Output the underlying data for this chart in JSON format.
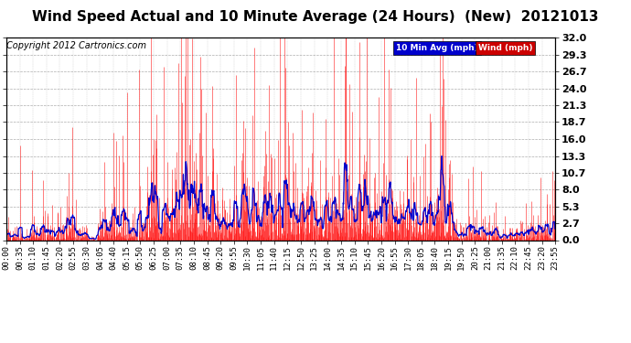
{
  "title": "Wind Speed Actual and 10 Minute Average (24 Hours)  (New)  20121013",
  "copyright": "Copyright 2012 Cartronics.com",
  "yticks": [
    0.0,
    2.7,
    5.3,
    8.0,
    10.7,
    13.3,
    16.0,
    18.7,
    21.3,
    24.0,
    26.7,
    29.3,
    32.0
  ],
  "ymax": 32.0,
  "ymin": 0.0,
  "xtick_labels": [
    "00:00",
    "00:35",
    "01:10",
    "01:45",
    "02:20",
    "02:55",
    "03:30",
    "04:05",
    "04:40",
    "05:15",
    "05:50",
    "06:25",
    "07:00",
    "07:35",
    "08:10",
    "08:45",
    "09:20",
    "09:55",
    "10:30",
    "11:05",
    "11:40",
    "12:15",
    "12:50",
    "13:25",
    "14:00",
    "14:35",
    "15:10",
    "15:45",
    "16:20",
    "16:55",
    "17:30",
    "18:05",
    "18:40",
    "19:15",
    "19:50",
    "20:25",
    "21:00",
    "21:35",
    "22:10",
    "22:45",
    "23:20",
    "23:55"
  ],
  "legend_labels": [
    "10 Min Avg (mph)",
    "Wind (mph)"
  ],
  "wind_color": "#ff0000",
  "avg_color": "#0000cc",
  "grey_spike_color": "#555555",
  "bg_color": "#ffffff",
  "plot_bg_color": "#ffffff",
  "grid_color": "#999999",
  "title_color": "#000000",
  "title_fontsize": 11,
  "copyright_fontsize": 7,
  "tick_fontsize": 6.5,
  "ytick_fontsize": 8
}
